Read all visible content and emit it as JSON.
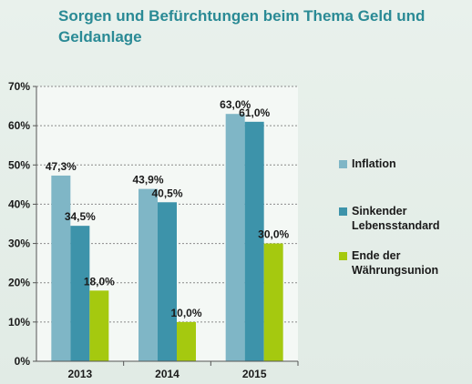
{
  "chart_data": {
    "type": "bar",
    "title": "Sorgen und Befürchtungen beim Thema Geld und Geldanlage",
    "categories": [
      "2013",
      "2014",
      "2015"
    ],
    "series": [
      {
        "name": "Inflation",
        "values": [
          47.3,
          43.9,
          63.0
        ],
        "labels": [
          "47,3%",
          "43,9%",
          "63,0%"
        ],
        "color": "#7fb6c6"
      },
      {
        "name": "Sinkender\nLebensstandard",
        "values": [
          34.5,
          40.5,
          61.0
        ],
        "labels": [
          "34,5%",
          "40,5%",
          "61,0%"
        ],
        "color": "#3d93aa"
      },
      {
        "name": "Ende der\nWährungsunion",
        "values": [
          18.0,
          10.0,
          30.0
        ],
        "labels": [
          "18,0%",
          "10,0%",
          "30,0%"
        ],
        "color": "#a5c90f"
      }
    ],
    "yticks": [
      "0%",
      "10%",
      "20%",
      "30%",
      "40%",
      "50%",
      "60%",
      "70%"
    ],
    "ylim": [
      0,
      70
    ],
    "grid": true,
    "legend": "right"
  }
}
